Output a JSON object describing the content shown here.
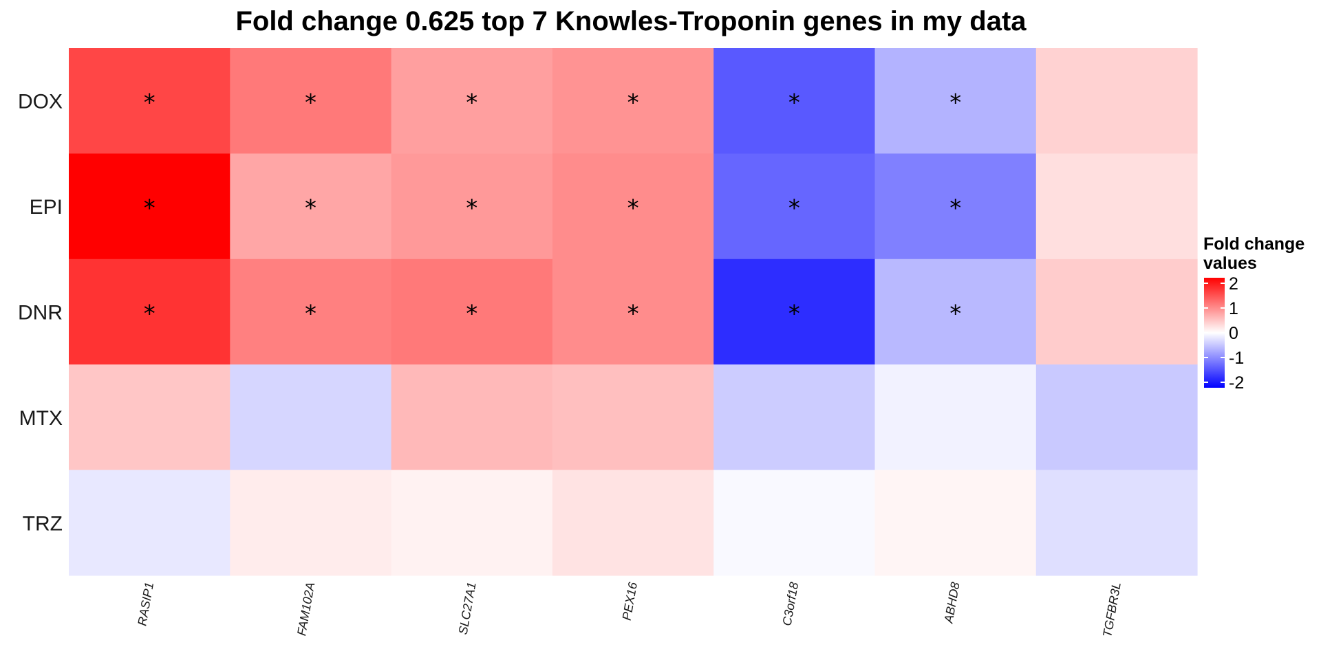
{
  "chart_data": {
    "type": "heatmap",
    "title": "Fold change 0.625 top 7 Knowles-Troponin genes in my data",
    "x_categories": [
      "RASIP1",
      "FAM102A",
      "SLC27A1",
      "PEX16",
      "C3orf18",
      "ABHD8",
      "TGFBR3L"
    ],
    "y_categories": [
      "DOX",
      "EPI",
      "DNR",
      "MTX",
      "TRZ"
    ],
    "values": [
      [
        1.45,
        1.05,
        0.75,
        0.85,
        -1.3,
        -0.6,
        0.35
      ],
      [
        2.0,
        0.7,
        0.8,
        0.9,
        -1.2,
        -1.0,
        0.25
      ],
      [
        1.6,
        1.0,
        1.05,
        0.9,
        -1.65,
        -0.55,
        0.4
      ],
      [
        0.45,
        -0.32,
        0.55,
        0.5,
        -0.4,
        -0.1,
        -0.42
      ],
      [
        -0.18,
        0.15,
        0.1,
        0.22,
        -0.05,
        0.08,
        -0.25
      ]
    ],
    "significant": [
      [
        true,
        true,
        true,
        true,
        true,
        true,
        false
      ],
      [
        true,
        true,
        true,
        true,
        true,
        true,
        false
      ],
      [
        true,
        true,
        true,
        true,
        true,
        true,
        false
      ],
      [
        false,
        false,
        false,
        false,
        false,
        false,
        false
      ],
      [
        false,
        false,
        false,
        false,
        false,
        false,
        false
      ]
    ],
    "significance_marker": "*",
    "legend": {
      "title": "Fold change values",
      "title_lines": [
        "Fold change",
        "values"
      ],
      "ticks": [
        2,
        1,
        0,
        -1,
        -2
      ],
      "tick_labels": [
        "2",
        "1",
        "0",
        "-1",
        "-2"
      ],
      "range": [
        -2,
        2
      ],
      "placement": "right"
    },
    "colors": {
      "low": "#0000FF",
      "mid": "#FFFFFF",
      "high": "#FF0000"
    }
  }
}
